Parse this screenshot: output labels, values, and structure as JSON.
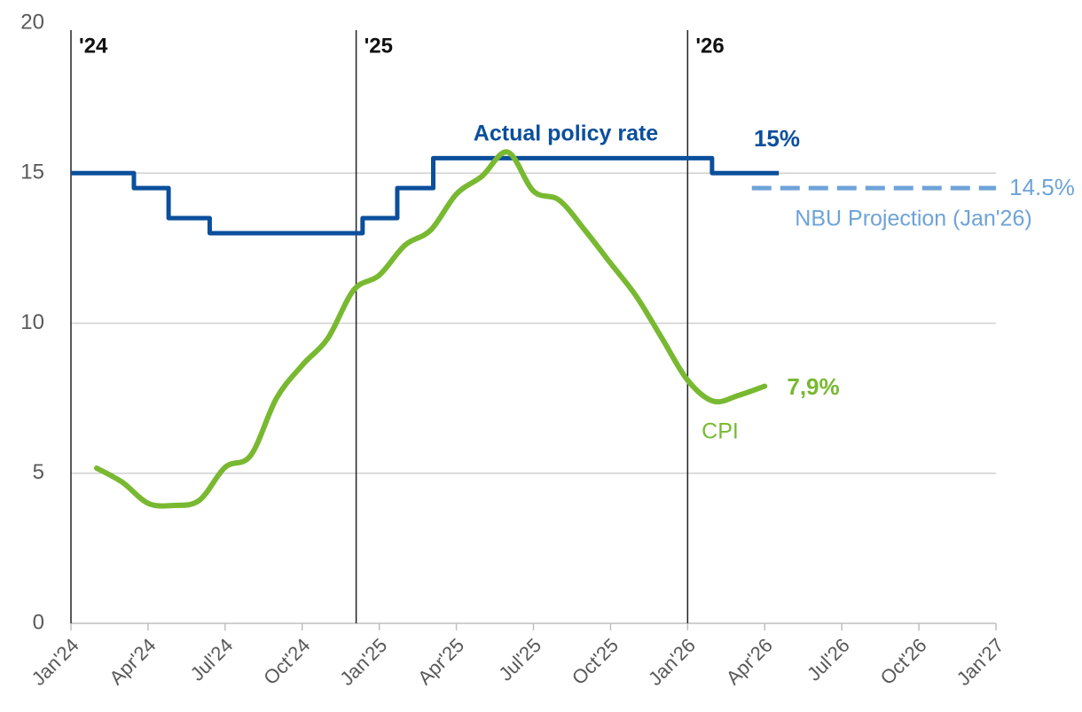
{
  "chart_data": {
    "type": "line",
    "xlim": [
      0,
      36
    ],
    "xticks": [
      {
        "value": 0,
        "label": "Jan'24"
      },
      {
        "value": 3,
        "label": "Apr'24"
      },
      {
        "value": 6,
        "label": "Jul'24"
      },
      {
        "value": 9,
        "label": "Oct'24"
      },
      {
        "value": 12,
        "label": "Jan'25"
      },
      {
        "value": 15,
        "label": "Apr'25"
      },
      {
        "value": 18,
        "label": "Jul'25"
      },
      {
        "value": 21,
        "label": "Oct'25"
      },
      {
        "value": 24,
        "label": "Jan'26"
      },
      {
        "value": 27,
        "label": "Apr'26"
      },
      {
        "value": 30,
        "label": "Jul'26"
      },
      {
        "value": 33,
        "label": "Oct'26"
      },
      {
        "value": 36,
        "label": "Jan'27"
      }
    ],
    "ylim": [
      0,
      20
    ],
    "yticks": [
      0,
      5,
      10,
      15,
      20
    ],
    "grid": true,
    "markers": [
      {
        "x": 0,
        "label": "'24"
      },
      {
        "x": 11.1,
        "label": "'25"
      },
      {
        "x": 24,
        "label": "'26"
      }
    ],
    "series": [
      {
        "name": "Actual policy rate",
        "color": "#0b4f9c",
        "step": true,
        "x": [
          0,
          2.45,
          3.8,
          5.4,
          11.35,
          12.7,
          14.1,
          24.95,
          27.55
        ],
        "values": [
          15,
          14.5,
          13.5,
          13,
          13.5,
          14.5,
          15.5,
          15,
          15
        ]
      },
      {
        "name": "NBU Projection (Jan'26)",
        "color": "#6ea3d8",
        "dashed": true,
        "x": [
          26.5,
          36
        ],
        "values": [
          14.5,
          14.5
        ]
      },
      {
        "name": "CPI",
        "color": "#78b931",
        "smooth": true,
        "x": [
          1,
          2,
          3,
          4,
          5,
          6,
          7,
          8,
          9,
          10,
          11,
          12,
          13,
          14,
          15,
          16,
          17,
          18,
          19,
          20,
          21,
          22,
          23,
          24,
          25,
          26,
          27
        ],
        "values": [
          5.17,
          4.7,
          4.0,
          3.93,
          4.1,
          5.2,
          5.6,
          7.5,
          8.6,
          9.5,
          11.1,
          11.6,
          12.6,
          13.1,
          14.3,
          14.9,
          15.7,
          14.4,
          14.1,
          13.1,
          12.0,
          10.9,
          9.5,
          8.1,
          7.4,
          7.6,
          7.9
        ]
      }
    ],
    "annotations": [
      {
        "text": "15%",
        "series": 0
      },
      {
        "text": "14.5%",
        "series": 1
      },
      {
        "text": "7,9%",
        "series": 2
      }
    ]
  }
}
